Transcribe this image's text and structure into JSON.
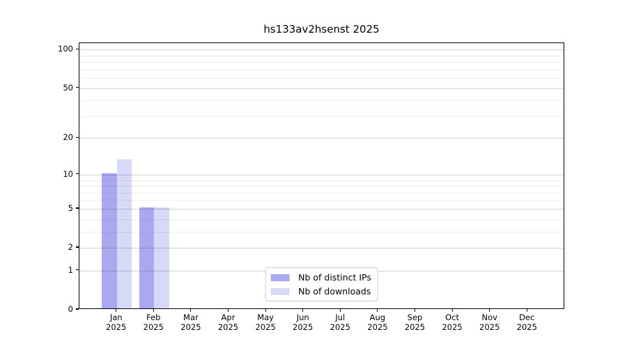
{
  "chart_data": {
    "type": "bar",
    "title": "hs133av2hsenst 2025",
    "categories": [
      "Jan 2025",
      "Feb 2025",
      "Mar 2025",
      "Apr 2025",
      "May 2025",
      "Jun 2025",
      "Jul 2025",
      "Aug 2025",
      "Sep 2025",
      "Oct 2025",
      "Nov 2025",
      "Dec 2025"
    ],
    "series": [
      {
        "name": "Nb of distinct IPs",
        "color": "#a9a9f0",
        "values": [
          10,
          5,
          0,
          0,
          0,
          0,
          0,
          0,
          0,
          0,
          0,
          0
        ]
      },
      {
        "name": "Nb of downloads",
        "color": "#d8d8f8",
        "values": [
          13,
          5,
          0,
          0,
          0,
          0,
          0,
          0,
          0,
          0,
          0,
          0
        ]
      }
    ],
    "xlabel": "",
    "ylabel": "",
    "yscale": "log1p",
    "ylim": [
      0,
      112.3
    ],
    "y_tick_labels": [
      100,
      50,
      20,
      10,
      5,
      2,
      1,
      0
    ],
    "y_minor_gridlines": [
      3,
      4,
      6,
      7,
      8,
      9,
      30,
      40,
      60,
      70,
      80,
      90
    ],
    "grid": true,
    "legend_position": "lower center",
    "colors": {
      "major_grid": "rgba(0,0,0,0.18)",
      "minor_grid": "rgba(0,0,0,0.07)",
      "spine": "#000000",
      "background": "#ffffff",
      "text": "#000000",
      "legend_border": "#cccccc"
    }
  }
}
